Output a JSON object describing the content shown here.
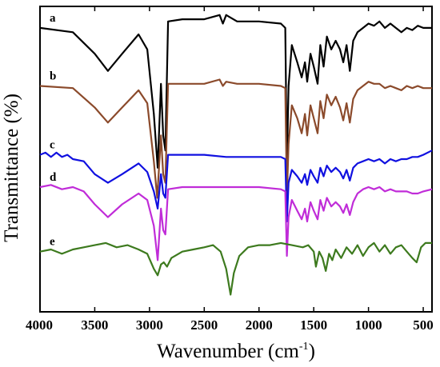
{
  "chart_data": {
    "type": "line",
    "title": "",
    "xlabel": "Wavenumber (cm",
    "xlabel_sup": "-1",
    "xlabel_end": ")",
    "ylabel": "Transmittance (%)",
    "xlim": [
      4000,
      420
    ],
    "x_ticks": [
      "4000",
      "3500",
      "3000",
      "2500",
      "2000",
      "1500",
      "1000",
      "500"
    ],
    "x_tick_values": [
      4000,
      3500,
      3000,
      2500,
      2000,
      1500,
      1000,
      500
    ],
    "y_ticks_labeled": false,
    "grid": false,
    "legend": "none",
    "series": [
      {
        "name": "a",
        "color": "#000000",
        "points": [
          [
            4000,
            82
          ],
          [
            3700,
            80
          ],
          [
            3500,
            70
          ],
          [
            3380,
            62
          ],
          [
            3250,
            70
          ],
          [
            3100,
            79
          ],
          [
            3020,
            72
          ],
          [
            2960,
            42
          ],
          [
            2925,
            17
          ],
          [
            2895,
            56
          ],
          [
            2875,
            32
          ],
          [
            2855,
            25
          ],
          [
            2830,
            85
          ],
          [
            2700,
            86
          ],
          [
            2500,
            86
          ],
          [
            2360,
            88
          ],
          [
            2330,
            84
          ],
          [
            2300,
            88
          ],
          [
            2200,
            85
          ],
          [
            2000,
            85
          ],
          [
            1800,
            84
          ],
          [
            1760,
            82
          ],
          [
            1745,
            18
          ],
          [
            1730,
            55
          ],
          [
            1700,
            74
          ],
          [
            1650,
            66
          ],
          [
            1610,
            59
          ],
          [
            1580,
            66
          ],
          [
            1560,
            57
          ],
          [
            1530,
            70
          ],
          [
            1500,
            64
          ],
          [
            1465,
            56
          ],
          [
            1440,
            74
          ],
          [
            1410,
            64
          ],
          [
            1380,
            78
          ],
          [
            1340,
            72
          ],
          [
            1300,
            76
          ],
          [
            1260,
            72
          ],
          [
            1230,
            66
          ],
          [
            1200,
            74
          ],
          [
            1170,
            62
          ],
          [
            1140,
            76
          ],
          [
            1100,
            80
          ],
          [
            1050,
            82
          ],
          [
            1000,
            84
          ],
          [
            950,
            83
          ],
          [
            900,
            85
          ],
          [
            850,
            82
          ],
          [
            800,
            84
          ],
          [
            750,
            82
          ],
          [
            700,
            80
          ],
          [
            650,
            82
          ],
          [
            600,
            81
          ],
          [
            550,
            83
          ],
          [
            500,
            82
          ],
          [
            420,
            82
          ]
        ]
      },
      {
        "name": "b",
        "color": "#8b4a2b",
        "points": [
          [
            4000,
            55
          ],
          [
            3700,
            54
          ],
          [
            3500,
            45
          ],
          [
            3380,
            38
          ],
          [
            3250,
            45
          ],
          [
            3100,
            53
          ],
          [
            3020,
            47
          ],
          [
            2960,
            20
          ],
          [
            2930,
            3
          ],
          [
            2895,
            32
          ],
          [
            2875,
            14
          ],
          [
            2855,
            10
          ],
          [
            2830,
            56
          ],
          [
            2700,
            56
          ],
          [
            2500,
            56
          ],
          [
            2360,
            58
          ],
          [
            2330,
            55
          ],
          [
            2300,
            57
          ],
          [
            2200,
            56
          ],
          [
            2000,
            56
          ],
          [
            1800,
            55
          ],
          [
            1760,
            54
          ],
          [
            1745,
            3
          ],
          [
            1730,
            28
          ],
          [
            1700,
            46
          ],
          [
            1650,
            40
          ],
          [
            1610,
            33
          ],
          [
            1580,
            42
          ],
          [
            1560,
            32
          ],
          [
            1530,
            46
          ],
          [
            1500,
            40
          ],
          [
            1465,
            33
          ],
          [
            1440,
            48
          ],
          [
            1410,
            40
          ],
          [
            1380,
            51
          ],
          [
            1340,
            46
          ],
          [
            1300,
            50
          ],
          [
            1260,
            45
          ],
          [
            1230,
            39
          ],
          [
            1200,
            47
          ],
          [
            1170,
            38
          ],
          [
            1140,
            49
          ],
          [
            1100,
            53
          ],
          [
            1050,
            55
          ],
          [
            1000,
            57
          ],
          [
            950,
            56
          ],
          [
            900,
            56
          ],
          [
            850,
            54
          ],
          [
            800,
            55
          ],
          [
            750,
            54
          ],
          [
            700,
            53
          ],
          [
            650,
            55
          ],
          [
            600,
            54
          ],
          [
            550,
            55
          ],
          [
            500,
            54
          ],
          [
            420,
            54
          ]
        ]
      },
      {
        "name": "c",
        "color": "#1010e0",
        "points": [
          [
            4000,
            23
          ],
          [
            3950,
            24
          ],
          [
            3900,
            22
          ],
          [
            3850,
            24
          ],
          [
            3800,
            22
          ],
          [
            3750,
            23
          ],
          [
            3700,
            21
          ],
          [
            3600,
            20
          ],
          [
            3500,
            14
          ],
          [
            3380,
            10
          ],
          [
            3250,
            14
          ],
          [
            3100,
            19
          ],
          [
            3020,
            15
          ],
          [
            2960,
            6
          ],
          [
            2925,
            -2
          ],
          [
            2895,
            14
          ],
          [
            2875,
            5
          ],
          [
            2855,
            3
          ],
          [
            2830,
            23
          ],
          [
            2700,
            23
          ],
          [
            2500,
            23
          ],
          [
            2300,
            22
          ],
          [
            2200,
            22
          ],
          [
            2000,
            22
          ],
          [
            1800,
            22
          ],
          [
            1760,
            21
          ],
          [
            1745,
            -8
          ],
          [
            1730,
            10
          ],
          [
            1700,
            16
          ],
          [
            1650,
            13
          ],
          [
            1610,
            10
          ],
          [
            1580,
            14
          ],
          [
            1560,
            9
          ],
          [
            1530,
            16
          ],
          [
            1500,
            13
          ],
          [
            1465,
            10
          ],
          [
            1440,
            17
          ],
          [
            1410,
            13
          ],
          [
            1380,
            18
          ],
          [
            1340,
            15
          ],
          [
            1300,
            17
          ],
          [
            1260,
            15
          ],
          [
            1230,
            12
          ],
          [
            1200,
            16
          ],
          [
            1170,
            11
          ],
          [
            1140,
            17
          ],
          [
            1100,
            19
          ],
          [
            1050,
            20
          ],
          [
            1000,
            21
          ],
          [
            950,
            20
          ],
          [
            900,
            21
          ],
          [
            850,
            19
          ],
          [
            800,
            21
          ],
          [
            750,
            20
          ],
          [
            700,
            21
          ],
          [
            650,
            21
          ],
          [
            600,
            22
          ],
          [
            550,
            22
          ],
          [
            500,
            23
          ],
          [
            420,
            25
          ]
        ]
      },
      {
        "name": "d",
        "color": "#c02cd8",
        "points": [
          [
            4000,
            8
          ],
          [
            3900,
            9
          ],
          [
            3800,
            7
          ],
          [
            3700,
            8
          ],
          [
            3600,
            6
          ],
          [
            3500,
            0
          ],
          [
            3380,
            -6
          ],
          [
            3250,
            0
          ],
          [
            3100,
            5
          ],
          [
            3020,
            2
          ],
          [
            2960,
            -10
          ],
          [
            2925,
            -26
          ],
          [
            2895,
            -2
          ],
          [
            2875,
            -12
          ],
          [
            2855,
            -14
          ],
          [
            2830,
            7
          ],
          [
            2700,
            8
          ],
          [
            2500,
            8
          ],
          [
            2300,
            8
          ],
          [
            2200,
            8
          ],
          [
            2000,
            8
          ],
          [
            1800,
            7
          ],
          [
            1760,
            6
          ],
          [
            1745,
            -24
          ],
          [
            1730,
            -6
          ],
          [
            1700,
            2
          ],
          [
            1650,
            -3
          ],
          [
            1610,
            -7
          ],
          [
            1580,
            -2
          ],
          [
            1560,
            -8
          ],
          [
            1530,
            1
          ],
          [
            1500,
            -3
          ],
          [
            1465,
            -7
          ],
          [
            1440,
            2
          ],
          [
            1410,
            -3
          ],
          [
            1380,
            3
          ],
          [
            1340,
            -1
          ],
          [
            1300,
            1
          ],
          [
            1260,
            -1
          ],
          [
            1230,
            -4
          ],
          [
            1200,
            0
          ],
          [
            1170,
            -5
          ],
          [
            1140,
            1
          ],
          [
            1100,
            5
          ],
          [
            1050,
            7
          ],
          [
            1000,
            8
          ],
          [
            950,
            7
          ],
          [
            900,
            8
          ],
          [
            850,
            6
          ],
          [
            800,
            7
          ],
          [
            750,
            6
          ],
          [
            700,
            6
          ],
          [
            650,
            6
          ],
          [
            600,
            5
          ],
          [
            550,
            5
          ],
          [
            500,
            6
          ],
          [
            420,
            7
          ]
        ]
      },
      {
        "name": "e",
        "color": "#3d7a1e",
        "points": [
          [
            4000,
            -22
          ],
          [
            3900,
            -21
          ],
          [
            3800,
            -23
          ],
          [
            3700,
            -21
          ],
          [
            3600,
            -20
          ],
          [
            3500,
            -19
          ],
          [
            3400,
            -18
          ],
          [
            3300,
            -20
          ],
          [
            3200,
            -19
          ],
          [
            3100,
            -21
          ],
          [
            3020,
            -23
          ],
          [
            2960,
            -30
          ],
          [
            2925,
            -33
          ],
          [
            2895,
            -28
          ],
          [
            2870,
            -27
          ],
          [
            2840,
            -29
          ],
          [
            2800,
            -25
          ],
          [
            2700,
            -22
          ],
          [
            2600,
            -21
          ],
          [
            2500,
            -20
          ],
          [
            2420,
            -19
          ],
          [
            2350,
            -22
          ],
          [
            2300,
            -30
          ],
          [
            2260,
            -42
          ],
          [
            2230,
            -32
          ],
          [
            2180,
            -24
          ],
          [
            2100,
            -20
          ],
          [
            2000,
            -19
          ],
          [
            1900,
            -19
          ],
          [
            1800,
            -18
          ],
          [
            1700,
            -19
          ],
          [
            1600,
            -20
          ],
          [
            1550,
            -19
          ],
          [
            1500,
            -22
          ],
          [
            1480,
            -29
          ],
          [
            1450,
            -22
          ],
          [
            1420,
            -25
          ],
          [
            1390,
            -31
          ],
          [
            1360,
            -23
          ],
          [
            1330,
            -26
          ],
          [
            1300,
            -21
          ],
          [
            1250,
            -25
          ],
          [
            1200,
            -20
          ],
          [
            1150,
            -23
          ],
          [
            1100,
            -19
          ],
          [
            1050,
            -24
          ],
          [
            1000,
            -20
          ],
          [
            950,
            -18
          ],
          [
            900,
            -22
          ],
          [
            850,
            -19
          ],
          [
            800,
            -23
          ],
          [
            750,
            -20
          ],
          [
            700,
            -19
          ],
          [
            650,
            -22
          ],
          [
            600,
            -25
          ],
          [
            560,
            -27
          ],
          [
            520,
            -20
          ],
          [
            480,
            -18
          ],
          [
            420,
            -18
          ]
        ]
      }
    ]
  }
}
